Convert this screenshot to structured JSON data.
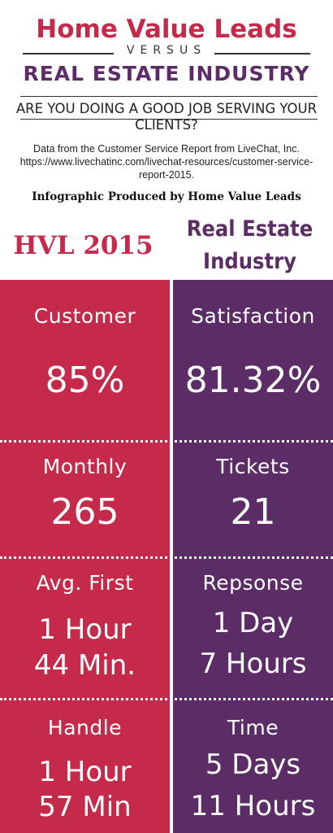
{
  "header": {
    "title": "Home Value Leads",
    "versus": "VERSUS",
    "industry": "REAL ESTATE INDUSTRY",
    "question": "ARE YOU DOING A GOOD JOB SERVING YOUR CLIENTS?"
  },
  "source": {
    "line1": "Data from the Customer Service Report from LiveChat, Inc.",
    "line2": "https://www.livechatinc.com/livechat-resources/customer-service-",
    "line3": "report-2015."
  },
  "produced_by": "Infographic Produced by Home Value Leads",
  "columns": {
    "left_heading": "HVL 2015",
    "right_heading_1": "Real Estate",
    "right_heading_2": "Industry"
  },
  "rows": [
    {
      "left_label": "Customer",
      "right_label": "Satisfaction",
      "left_value": [
        "85%"
      ],
      "right_value": [
        "81.32%"
      ]
    },
    {
      "left_label": "Monthly",
      "right_label": "Tickets",
      "left_value": [
        "265"
      ],
      "right_value": [
        "21"
      ]
    },
    {
      "left_label": "Avg. First",
      "right_label": "Repsonse",
      "left_value": [
        "1 Hour",
        "44 Min."
      ],
      "right_value": [
        "1 Day",
        "7 Hours"
      ]
    },
    {
      "left_label": "Handle",
      "right_label": "Time",
      "left_value": [
        "1 Hour",
        "57 Min"
      ],
      "right_value": [
        "5 Days",
        "11 Hours"
      ]
    }
  ],
  "colors": {
    "hvl": "#c62a4a",
    "industry": "#5c2c66"
  }
}
